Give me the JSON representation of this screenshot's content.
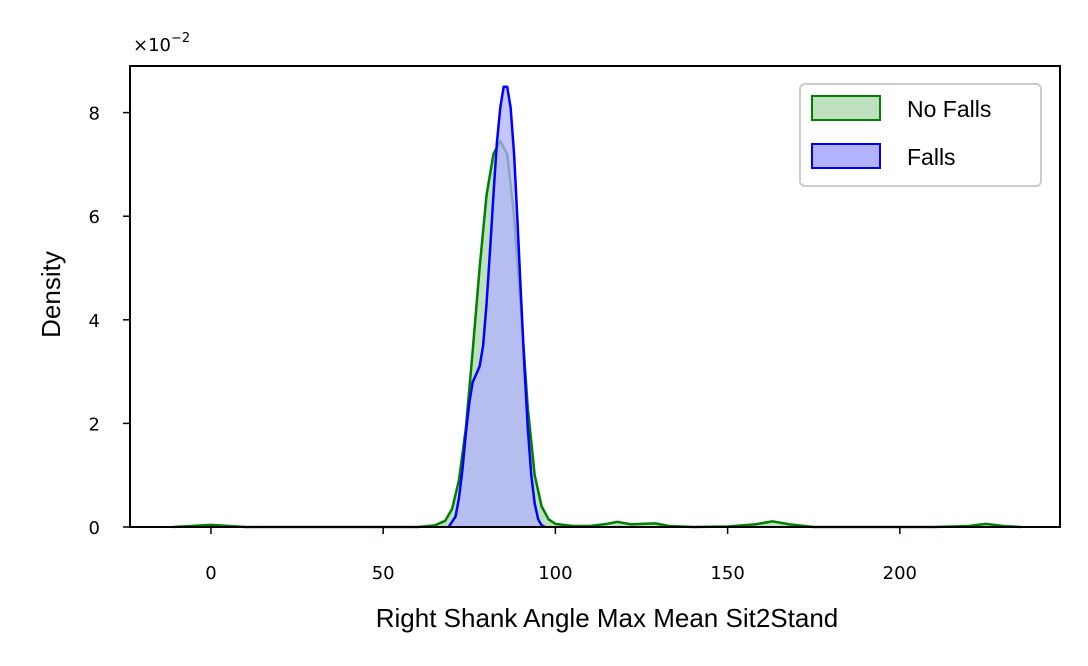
{
  "chart_data": {
    "type": "area",
    "xlabel": "Right Shank Angle Max Mean Sit2Stand",
    "ylabel": "Density",
    "xlim": [
      -23.5,
      246.5
    ],
    "ylim": [
      0,
      8.9
    ],
    "y_scale_label": "×10",
    "y_scale_exponent": "−2",
    "xticks": [
      0,
      50,
      100,
      150,
      200
    ],
    "yticks": [
      0,
      2,
      4,
      6,
      8
    ],
    "grid": false,
    "legend_position": "top-right",
    "series": [
      {
        "name": "No Falls",
        "stroke": "#008000",
        "fill": "#bfe0bf",
        "x": [
          -11,
          0,
          10,
          20,
          30,
          40,
          50,
          60,
          65,
          68,
          70,
          72,
          74,
          76,
          78,
          80,
          82,
          84,
          86,
          88,
          90,
          92,
          94,
          96,
          98,
          100,
          105,
          110,
          115,
          118,
          122,
          125,
          129,
          133,
          140,
          150,
          158,
          163,
          168,
          175,
          190,
          210,
          220,
          225,
          230,
          235
        ],
        "y": [
          0,
          0.04,
          0,
          0,
          0,
          0,
          0,
          0,
          0.03,
          0.12,
          0.35,
          0.9,
          1.9,
          3.4,
          5.0,
          6.4,
          7.2,
          7.45,
          7.2,
          6.0,
          4.2,
          2.3,
          1.0,
          0.4,
          0.15,
          0.06,
          0.02,
          0.02,
          0.06,
          0.1,
          0.05,
          0.06,
          0.07,
          0.02,
          0,
          0.01,
          0.05,
          0.11,
          0.05,
          0,
          0,
          0,
          0.02,
          0.06,
          0.02,
          0
        ]
      },
      {
        "name": "Falls",
        "stroke": "#0000ff",
        "fill": "#b3b3ff",
        "x": [
          69,
          71,
          72,
          73,
          74,
          75,
          76,
          77,
          78,
          79,
          80,
          81,
          82,
          83,
          84,
          85,
          86,
          87,
          88,
          89,
          90,
          91,
          92,
          93,
          94,
          95,
          96,
          97
        ],
        "y": [
          0,
          0.2,
          0.55,
          1.1,
          1.8,
          2.4,
          2.8,
          2.95,
          3.1,
          3.5,
          4.3,
          5.3,
          6.4,
          7.4,
          8.1,
          8.5,
          8.5,
          8.1,
          7.2,
          5.9,
          4.5,
          3.1,
          1.9,
          1.0,
          0.45,
          0.15,
          0.03,
          0
        ]
      }
    ]
  }
}
